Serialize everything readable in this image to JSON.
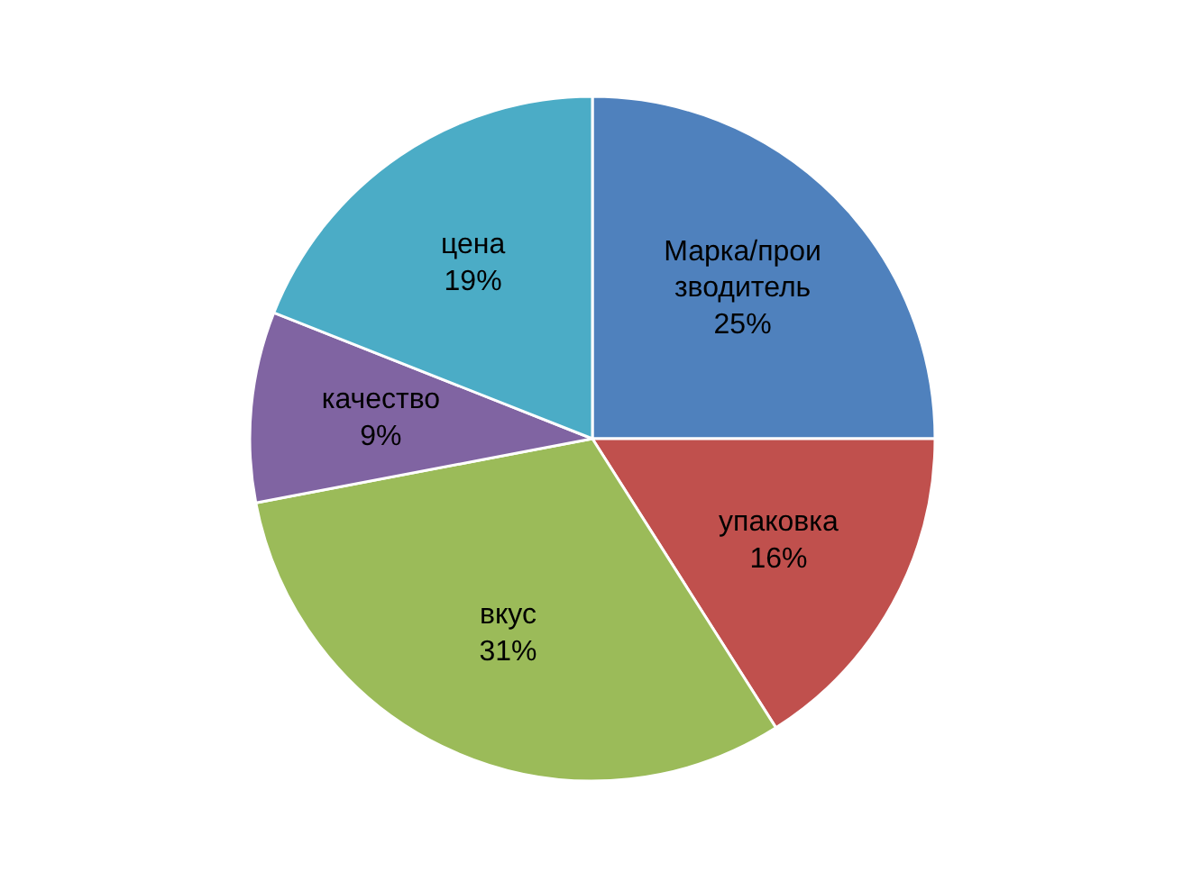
{
  "chart_data": {
    "type": "pie",
    "categories": [
      "Марка/производитель",
      "упаковка",
      "вкус",
      "качество",
      "цена"
    ],
    "values": [
      25,
      16,
      31,
      9,
      19
    ],
    "colors": [
      "#4f81bd",
      "#c0504d",
      "#9bbb59",
      "#8064a2",
      "#4bacc6"
    ],
    "value_labels": [
      "25%",
      "16%",
      "31%",
      "9%",
      "19%"
    ]
  }
}
